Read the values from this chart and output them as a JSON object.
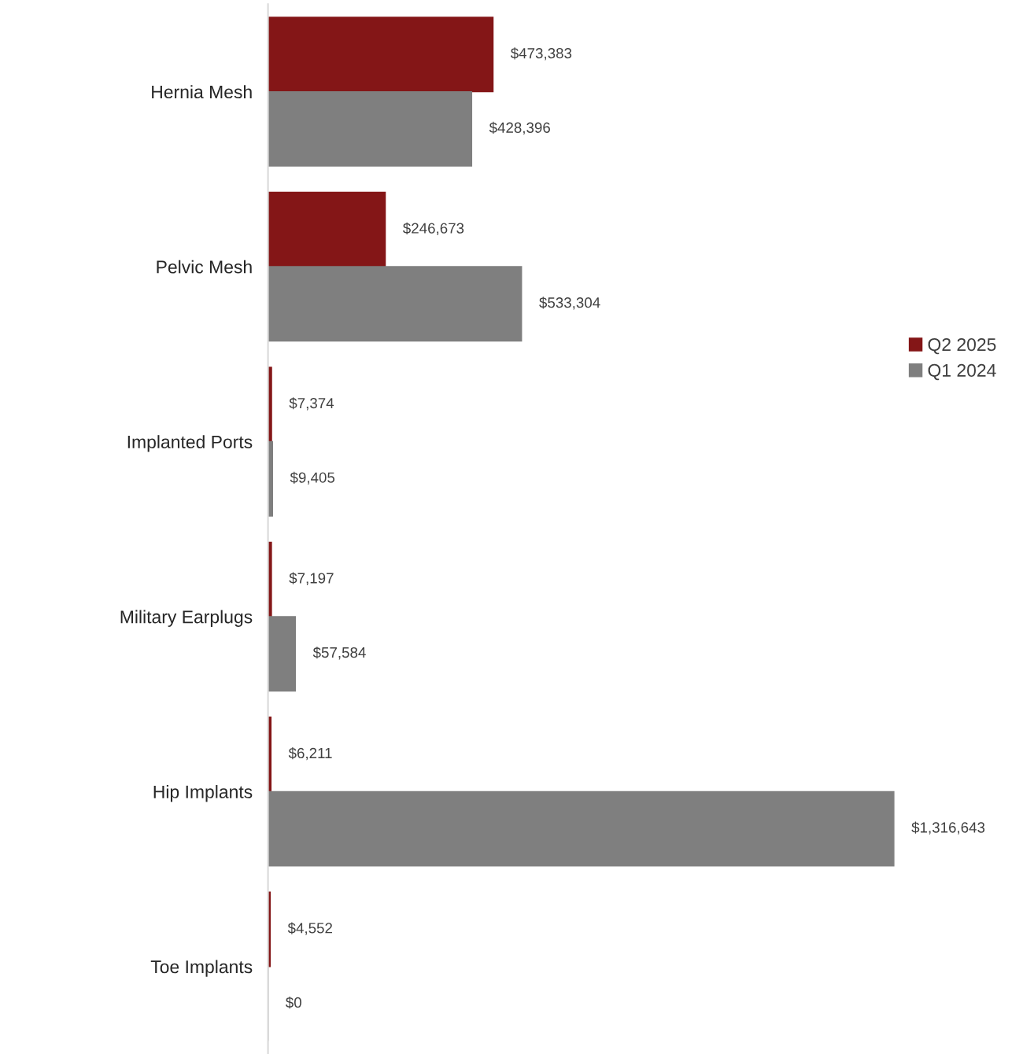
{
  "chart_data": {
    "type": "bar",
    "orientation": "horizontal",
    "categories": [
      "Hernia Mesh",
      "Pelvic Mesh",
      "Implanted Ports",
      "Military Earplugs",
      "Hip Implants",
      "Toe Implants"
    ],
    "series": [
      {
        "name": "Q2 2025",
        "color": "#841617",
        "values": [
          473383,
          246673,
          7374,
          7197,
          6211,
          4552
        ],
        "value_labels": [
          "$473,383",
          "$246,673",
          "$7,374",
          "$7,197",
          "$6,211",
          "$4,552"
        ]
      },
      {
        "name": "Q1 2024",
        "color": "#7f7f7f",
        "values": [
          428396,
          533304,
          9405,
          57584,
          1316643,
          0
        ],
        "value_labels": [
          "$428,396",
          "$533,304",
          "$9,405",
          "$57,584",
          "$1,316,643",
          "$0"
        ]
      }
    ],
    "legend": "right",
    "grid": false,
    "tick_labels": "y"
  }
}
